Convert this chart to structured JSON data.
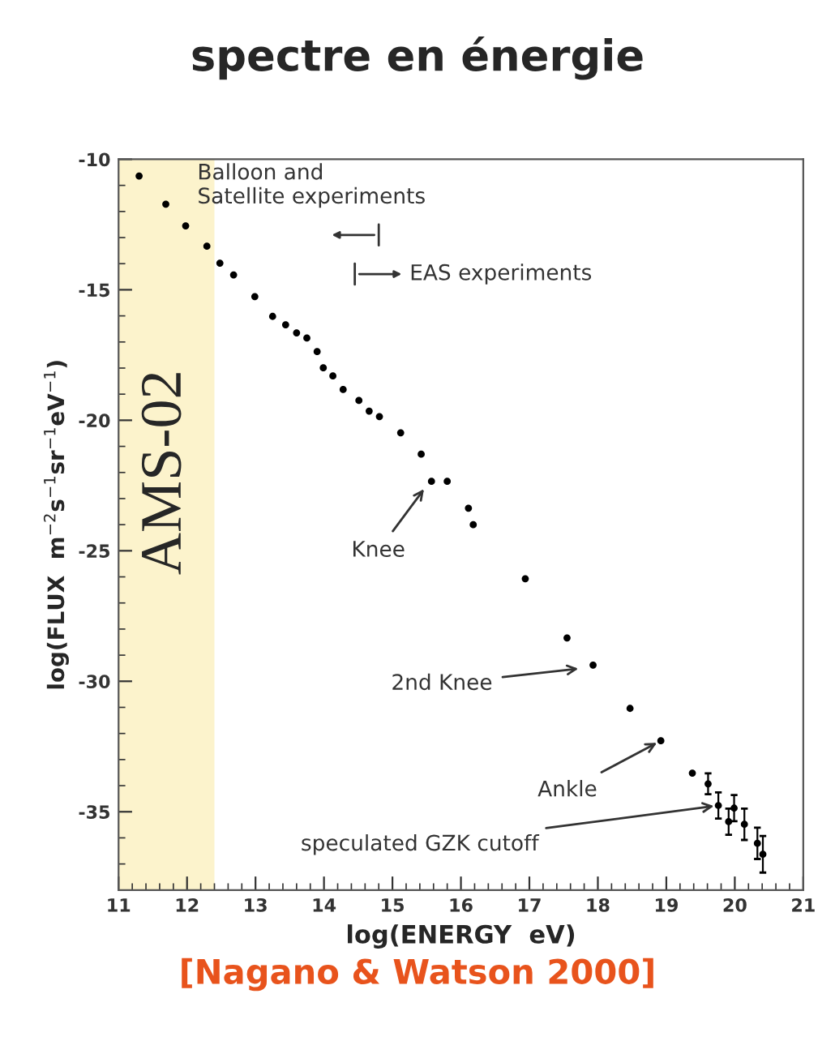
{
  "chart_data": {
    "type": "scatter",
    "title": "spectre en énergie",
    "xlabel": "log(ENERGY  eV)",
    "ylabel": "log(FLUX  m$^{−2}$s$^{−1}$sr$^{−1}$eV$^{−1}$)",
    "x": [
      11.3,
      11.69,
      11.98,
      12.29,
      12.48,
      12.68,
      12.99,
      13.25,
      13.44,
      13.6,
      13.75,
      13.9,
      13.99,
      14.13,
      14.28,
      14.51,
      14.66,
      14.81,
      15.12,
      15.42,
      15.57,
      15.8,
      16.11,
      16.18,
      16.94,
      17.55,
      17.93,
      18.47,
      18.92,
      19.38,
      19.61,
      19.76,
      19.91,
      19.99,
      20.14,
      20.33,
      20.41
    ],
    "series": [
      {
        "color": "#000000",
        "values": [
          -10.64,
          -11.72,
          -12.55,
          -13.33,
          -13.98,
          -14.43,
          -15.26,
          -16.02,
          -16.34,
          -16.65,
          -16.85,
          -17.37,
          -17.99,
          -18.3,
          -18.82,
          -19.24,
          -19.65,
          -19.86,
          -20.48,
          -21.3,
          -22.34,
          -22.34,
          -23.37,
          -24.0,
          -26.07,
          -28.34,
          -29.38,
          -31.04,
          -32.28,
          -33.52,
          -33.93,
          -34.76,
          -35.38,
          -34.86,
          -35.48,
          -36.21,
          -36.63
        ],
        "errors": [
          null,
          null,
          null,
          null,
          null,
          null,
          null,
          null,
          null,
          null,
          null,
          null,
          null,
          null,
          null,
          null,
          null,
          null,
          null,
          null,
          null,
          null,
          null,
          null,
          null,
          null,
          null,
          null,
          null,
          null,
          0.4,
          0.5,
          0.5,
          0.5,
          0.6,
          0.6,
          0.7
        ]
      }
    ],
    "xlim": [
      11,
      21
    ],
    "ylim": [
      -38,
      -10
    ],
    "xticks": [
      11,
      12,
      13,
      14,
      15,
      16,
      17,
      18,
      19,
      20,
      21
    ],
    "yticks": [
      -10,
      -15,
      -20,
      -25,
      -30,
      -35
    ],
    "marker": "circle",
    "grid": false,
    "legend": false,
    "bands": [
      {
        "axis": "x",
        "from": 11,
        "to": 12.4,
        "label": "AMS-02",
        "color": "#fcf3cc"
      }
    ],
    "annotations": [
      "Balloon and\nSatellite experiments",
      "EAS experiments",
      {
        "text": "Knee",
        "x": 15.5,
        "y": -22.5
      },
      {
        "text": "2nd Knee",
        "x": 17.78,
        "y": -29.5
      },
      {
        "text": "Ankle",
        "x": 18.92,
        "y": -32.28
      },
      {
        "text": "speculated GZK cutoff",
        "x": 19.76,
        "y": -34.76
      },
      "[Nagano & Watson 2000]"
    ]
  }
}
